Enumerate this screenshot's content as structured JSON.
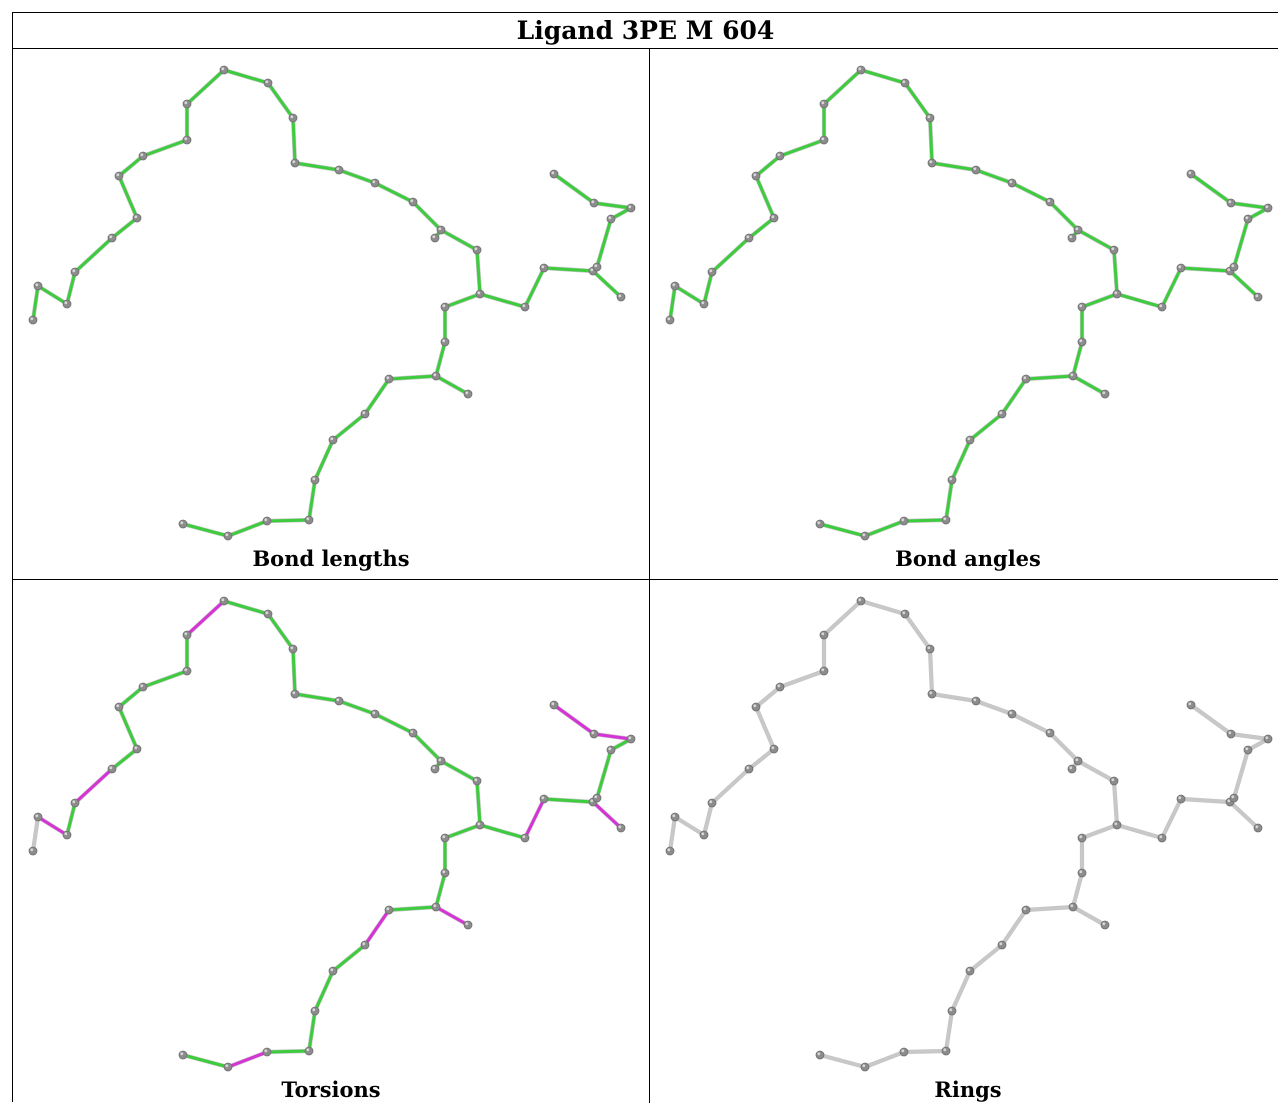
{
  "title": "Ligand 3PE M 604",
  "panels": [
    {
      "caption": "Bond lengths",
      "highlight": [],
      "default_color": "#3dcc3d"
    },
    {
      "caption": "Bond angles",
      "highlight": [
        [
          46,
          47
        ]
      ],
      "default_color": "#3dcc3d"
    },
    {
      "caption": "Torsions",
      "highlight": [
        [
          1,
          2
        ],
        [
          3,
          4
        ],
        [
          9,
          10
        ],
        [
          22,
          23
        ],
        [
          24,
          25
        ],
        [
          29,
          30
        ],
        [
          32,
          33
        ],
        [
          33,
          34
        ],
        [
          35,
          36
        ],
        [
          36,
          37
        ],
        [
          39,
          40
        ],
        [
          40,
          41
        ],
        [
          41,
          42
        ],
        [
          42,
          43
        ]
      ],
      "default_color": "#3dcc3d",
      "grey_bonds": [
        [
          0,
          1
        ],
        [
          43,
          44
        ],
        [
          45,
          46
        ],
        [
          46,
          47
        ],
        [
          48,
          49
        ],
        [
          49,
          50
        ],
        [
          50,
          51
        ],
        [
          51,
          52
        ],
        [
          52,
          53
        ],
        [
          45,
          53
        ]
      ]
    },
    {
      "caption": "Rings",
      "highlight": [],
      "default_color": "#c8c8c8"
    }
  ],
  "colors": {
    "bond_green": "#3dcc3d",
    "bond_magenta": "#d633d6",
    "bond_grey": "#c8c8c8",
    "atom": "#8c8c8c"
  }
}
